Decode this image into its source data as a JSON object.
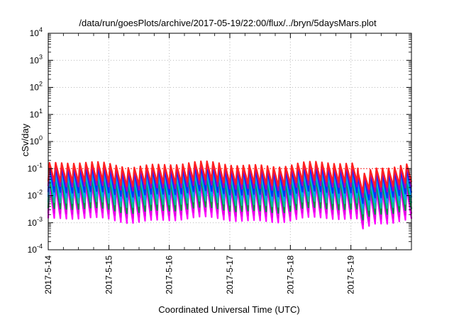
{
  "chart_data": {
    "type": "line",
    "title": "/data/run/goesPlots/archive/2017-05-19/22:00/flux/../bryn/5daysMars.plot",
    "xlabel": "Coordinated Universal Time (UTC)",
    "ylabel": "cSv/day",
    "xlim": [
      "2017-05-14",
      "2017-05-20"
    ],
    "ylim": [
      0.0001,
      10000
    ],
    "yscale": "log",
    "grid": true,
    "legend": "none",
    "x_ticks": [
      "2017-5-14",
      "2017-5-15",
      "2017-5-16",
      "2017-5-17",
      "2017-5-18",
      "2017-5-19"
    ],
    "y_ticks": [
      {
        "value": 0.0001,
        "base": "10",
        "exp": "-4"
      },
      {
        "value": 0.001,
        "base": "10",
        "exp": "-3"
      },
      {
        "value": 0.01,
        "base": "10",
        "exp": "-2"
      },
      {
        "value": 0.1,
        "base": "10",
        "exp": "-1"
      },
      {
        "value": 1,
        "base": "10",
        "exp": "0"
      },
      {
        "value": 10,
        "base": "10",
        "exp": "1"
      },
      {
        "value": 100,
        "base": "10",
        "exp": "2"
      },
      {
        "value": 1000,
        "base": "10",
        "exp": "3"
      },
      {
        "value": 10000,
        "base": "10",
        "exp": "4"
      }
    ],
    "series_pattern": {
      "period_days": 0.1,
      "peak_levels": [
        0.15,
        0.13,
        0.1,
        0.075,
        0.055,
        0.04,
        0.03,
        0.022
      ],
      "trough_levels": [
        0.03,
        0.02,
        0.012,
        0.008,
        0.005,
        0.003,
        0.002,
        0.0013
      ],
      "dip": {
        "x": "2017-05-19T04:00",
        "min": 0.0006
      }
    },
    "series_colors": [
      "#ff2020",
      "#b000b0",
      "#0030ff",
      "#00a0ff",
      "#00c0a0",
      "#009040",
      "#e000e0",
      "#ff00ff"
    ],
    "reference_line": {
      "value": 0.1,
      "color": "#ff3030"
    }
  }
}
